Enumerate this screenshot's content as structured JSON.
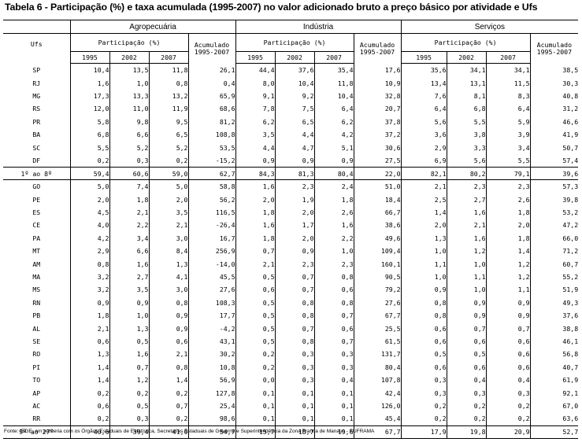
{
  "title": "Tabela 6 - Participação (%) e taxa acumulada (1995-2007) no valor adicionado bruto a preço básico por atividade e Ufs",
  "header": {
    "ufs_label": "Ufs",
    "sectors": [
      "Agropecuária",
      "Indústria",
      "Serviços"
    ],
    "participation_label": "Participação (%)",
    "accum_label_1": "Acumulado",
    "accum_label_2": "1995-2007",
    "years": [
      "1995",
      "2002",
      "2007"
    ]
  },
  "group1": [
    {
      "uf": "SP",
      "v": [
        "10,4",
        "13,5",
        "11,8",
        "26,1",
        "44,4",
        "37,6",
        "35,4",
        "17,6",
        "35,6",
        "34,1",
        "34,1",
        "38,5"
      ]
    },
    {
      "uf": "RJ",
      "v": [
        "1,6",
        "1,0",
        "0,8",
        "0,4",
        "8,0",
        "10,4",
        "11,8",
        "10,9",
        "13,4",
        "13,1",
        "11,5",
        "30,3"
      ]
    },
    {
      "uf": "MG",
      "v": [
        "17,3",
        "13,3",
        "13,2",
        "65,9",
        "9,1",
        "9,2",
        "10,4",
        "32,8",
        "7,6",
        "8,1",
        "8,3",
        "40,8"
      ]
    },
    {
      "uf": "RS",
      "v": [
        "12,0",
        "11,0",
        "11,9",
        "68,6",
        "7,8",
        "7,5",
        "6,4",
        "20,7",
        "6,4",
        "6,8",
        "6,4",
        "31,2"
      ]
    },
    {
      "uf": "PR",
      "v": [
        "5,8",
        "9,8",
        "9,5",
        "81,2",
        "6,2",
        "6,5",
        "6,2",
        "37,8",
        "5,6",
        "5,5",
        "5,9",
        "46,6"
      ]
    },
    {
      "uf": "BA",
      "v": [
        "6,8",
        "6,6",
        "6,5",
        "108,8",
        "3,5",
        "4,4",
        "4,2",
        "37,2",
        "3,6",
        "3,8",
        "3,9",
        "41,9"
      ]
    },
    {
      "uf": "SC",
      "v": [
        "5,5",
        "5,2",
        "5,2",
        "53,5",
        "4,4",
        "4,7",
        "5,1",
        "30,6",
        "2,9",
        "3,3",
        "3,4",
        "50,7"
      ]
    },
    {
      "uf": "DF",
      "v": [
        "0,2",
        "0,3",
        "0,2",
        "-15,2",
        "0,9",
        "0,9",
        "0,9",
        "27,5",
        "6,9",
        "5,6",
        "5,5",
        "57,4"
      ]
    }
  ],
  "sum1": {
    "label": "1º ao 8º",
    "v": [
      "59,4",
      "60,6",
      "59,0",
      "62,7",
      "84,3",
      "81,3",
      "80,4",
      "22,0",
      "82,1",
      "80,2",
      "79,1",
      "39,6"
    ]
  },
  "group2": [
    {
      "uf": "GO",
      "v": [
        "5,0",
        "7,4",
        "5,0",
        "58,8",
        "1,6",
        "2,3",
        "2,4",
        "51,0",
        "2,1",
        "2,3",
        "2,3",
        "57,3"
      ]
    },
    {
      "uf": "PE",
      "v": [
        "2,0",
        "1,8",
        "2,0",
        "56,2",
        "2,0",
        "1,9",
        "1,8",
        "18,4",
        "2,5",
        "2,7",
        "2,6",
        "39,8"
      ]
    },
    {
      "uf": "ES",
      "v": [
        "4,5",
        "2,1",
        "3,5",
        "116,5",
        "1,8",
        "2,0",
        "2,6",
        "66,7",
        "1,4",
        "1,6",
        "1,8",
        "53,2"
      ]
    },
    {
      "uf": "CE",
      "v": [
        "4,0",
        "2,2",
        "2,1",
        "-26,4",
        "1,6",
        "1,7",
        "1,6",
        "38,6",
        "2,0",
        "2,1",
        "2,0",
        "47,2"
      ]
    },
    {
      "uf": "PA",
      "v": [
        "4,2",
        "3,4",
        "3,0",
        "16,7",
        "1,8",
        "2,0",
        "2,2",
        "49,6",
        "1,3",
        "1,6",
        "1,8",
        "66,0"
      ]
    },
    {
      "uf": "MT",
      "v": [
        "2,9",
        "6,6",
        "8,4",
        "256,9",
        "0,7",
        "0,9",
        "1,0",
        "109,4",
        "1,0",
        "1,2",
        "1,4",
        "71,2"
      ]
    },
    {
      "uf": "AM",
      "v": [
        "0,8",
        "1,6",
        "1,3",
        "-14,0",
        "2,1",
        "2,3",
        "2,3",
        "160,1",
        "1,1",
        "1,0",
        "1,2",
        "60,7"
      ]
    },
    {
      "uf": "MA",
      "v": [
        "3,2",
        "2,7",
        "4,1",
        "45,5",
        "0,5",
        "0,7",
        "0,8",
        "90,5",
        "1,0",
        "1,1",
        "1,2",
        "55,2"
      ]
    },
    {
      "uf": "MS",
      "v": [
        "3,2",
        "3,5",
        "3,0",
        "27,6",
        "0,6",
        "0,7",
        "0,6",
        "79,2",
        "0,9",
        "1,0",
        "1,1",
        "51,9"
      ]
    },
    {
      "uf": "RN",
      "v": [
        "0,9",
        "0,9",
        "0,8",
        "108,3",
        "0,5",
        "0,8",
        "0,8",
        "27,6",
        "0,8",
        "0,9",
        "0,9",
        "49,3"
      ]
    },
    {
      "uf": "PB",
      "v": [
        "1,8",
        "1,0",
        "0,9",
        "17,7",
        "0,5",
        "0,8",
        "0,7",
        "67,7",
        "0,8",
        "0,9",
        "0,9",
        "37,6"
      ]
    },
    {
      "uf": "AL",
      "v": [
        "2,1",
        "1,3",
        "0,9",
        "-4,2",
        "0,5",
        "0,7",
        "0,6",
        "25,5",
        "0,6",
        "0,7",
        "0,7",
        "38,8"
      ]
    },
    {
      "uf": "SE",
      "v": [
        "0,6",
        "0,5",
        "0,6",
        "43,1",
        "0,5",
        "0,8",
        "0,7",
        "61,5",
        "0,6",
        "0,6",
        "0,6",
        "46,1"
      ]
    },
    {
      "uf": "RO",
      "v": [
        "1,3",
        "1,6",
        "2,1",
        "30,2",
        "0,2",
        "0,3",
        "0,3",
        "131,7",
        "0,5",
        "0,5",
        "0,6",
        "56,8"
      ]
    },
    {
      "uf": "PI",
      "v": [
        "1,4",
        "0,7",
        "0,8",
        "10,8",
        "0,2",
        "0,3",
        "0,3",
        "80,4",
        "0,6",
        "0,6",
        "0,6",
        "40,7"
      ]
    },
    {
      "uf": "TO",
      "v": [
        "1,4",
        "1,2",
        "1,4",
        "56,9",
        "0,0",
        "0,3",
        "0,4",
        "107,8",
        "0,3",
        "0,4",
        "0,4",
        "61,9"
      ]
    },
    {
      "uf": "AP",
      "v": [
        "0,2",
        "0,2",
        "0,2",
        "127,8",
        "0,1",
        "0,1",
        "0,1",
        "42,4",
        "0,3",
        "0,3",
        "0,3",
        "92,1"
      ]
    },
    {
      "uf": "AC",
      "v": [
        "0,6",
        "0,5",
        "0,7",
        "25,4",
        "0,1",
        "0,1",
        "0,1",
        "126,0",
        "0,2",
        "0,2",
        "0,2",
        "67,0"
      ]
    },
    {
      "uf": "RR",
      "v": [
        "0,2",
        "0,3",
        "0,2",
        "98,6",
        "0,1",
        "0,1",
        "0,1",
        "45,4",
        "0,2",
        "0,2",
        "0,2",
        "63,6"
      ]
    }
  ],
  "sum2": {
    "label": "9º ao 27º",
    "v": [
      "40,6",
      "39,4",
      "41,0",
      "54,7",
      "15,7",
      "18,7",
      "19,6",
      "67,7",
      "17,9",
      "19,8",
      "20,9",
      "52,7"
    ]
  },
  "source": "Fonte: IBGE, em parceria com os Órgãos Estaduais de Estatística, Secretarias Estaduais de Governo e Superintendência da Zona Franca de Manaus - SUFRAMA"
}
